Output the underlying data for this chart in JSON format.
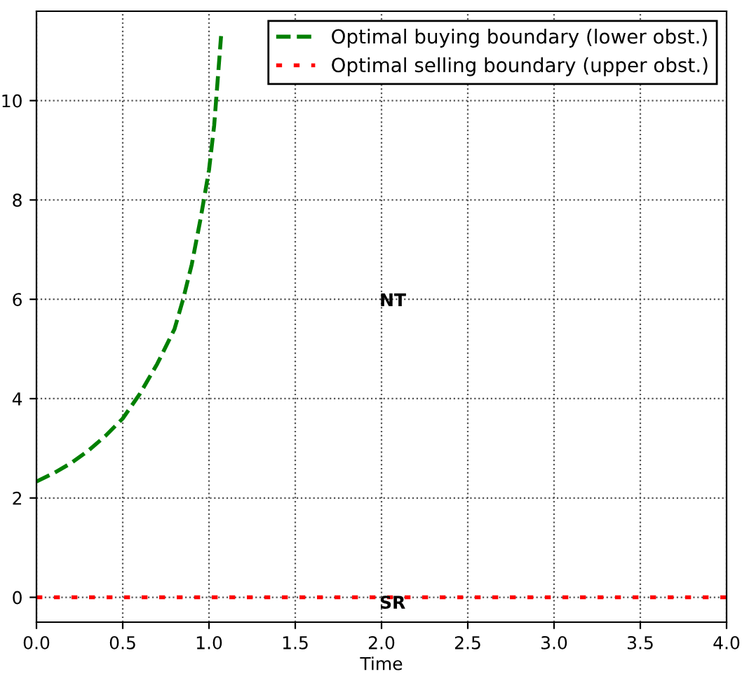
{
  "chart_data": {
    "type": "line",
    "xlabel": "Time",
    "xlim": [
      0,
      4
    ],
    "xticks": [
      {
        "value": 0,
        "label": "0.0"
      },
      {
        "value": 0.5,
        "label": "0.5"
      },
      {
        "value": 1,
        "label": "1.0"
      },
      {
        "value": 1.5,
        "label": "1.5"
      },
      {
        "value": 2,
        "label": "2.0"
      },
      {
        "value": 2.5,
        "label": "2.5"
      },
      {
        "value": 3,
        "label": "3.0"
      },
      {
        "value": 3.5,
        "label": "3.5"
      },
      {
        "value": 4,
        "label": "4.0"
      }
    ],
    "ylim": [
      -0.5,
      11.8
    ],
    "yticks": [
      0,
      2,
      4,
      6,
      8,
      10
    ],
    "series": [
      {
        "name": "Optimal buying boundary (lower obst.)",
        "color": "#008000",
        "line_style": "dashed",
        "x": [
          0,
          0.1,
          0.2,
          0.3,
          0.4,
          0.5,
          0.6,
          0.7,
          0.8,
          0.85,
          0.9,
          0.95,
          1.0,
          1.03,
          1.05,
          1.07
        ],
        "values": [
          2.33,
          2.5,
          2.7,
          2.95,
          3.25,
          3.6,
          4.1,
          4.7,
          5.4,
          6.0,
          6.7,
          7.6,
          8.6,
          9.5,
          10.4,
          11.3
        ]
      },
      {
        "name": "Optimal selling boundary (upper obst.)",
        "color": "#ff0000",
        "line_style": "dotted",
        "x": [
          0,
          4
        ],
        "values": [
          0,
          0
        ]
      }
    ],
    "annotations": [
      "NT",
      "SR"
    ],
    "grid": true,
    "legend": "top right"
  }
}
